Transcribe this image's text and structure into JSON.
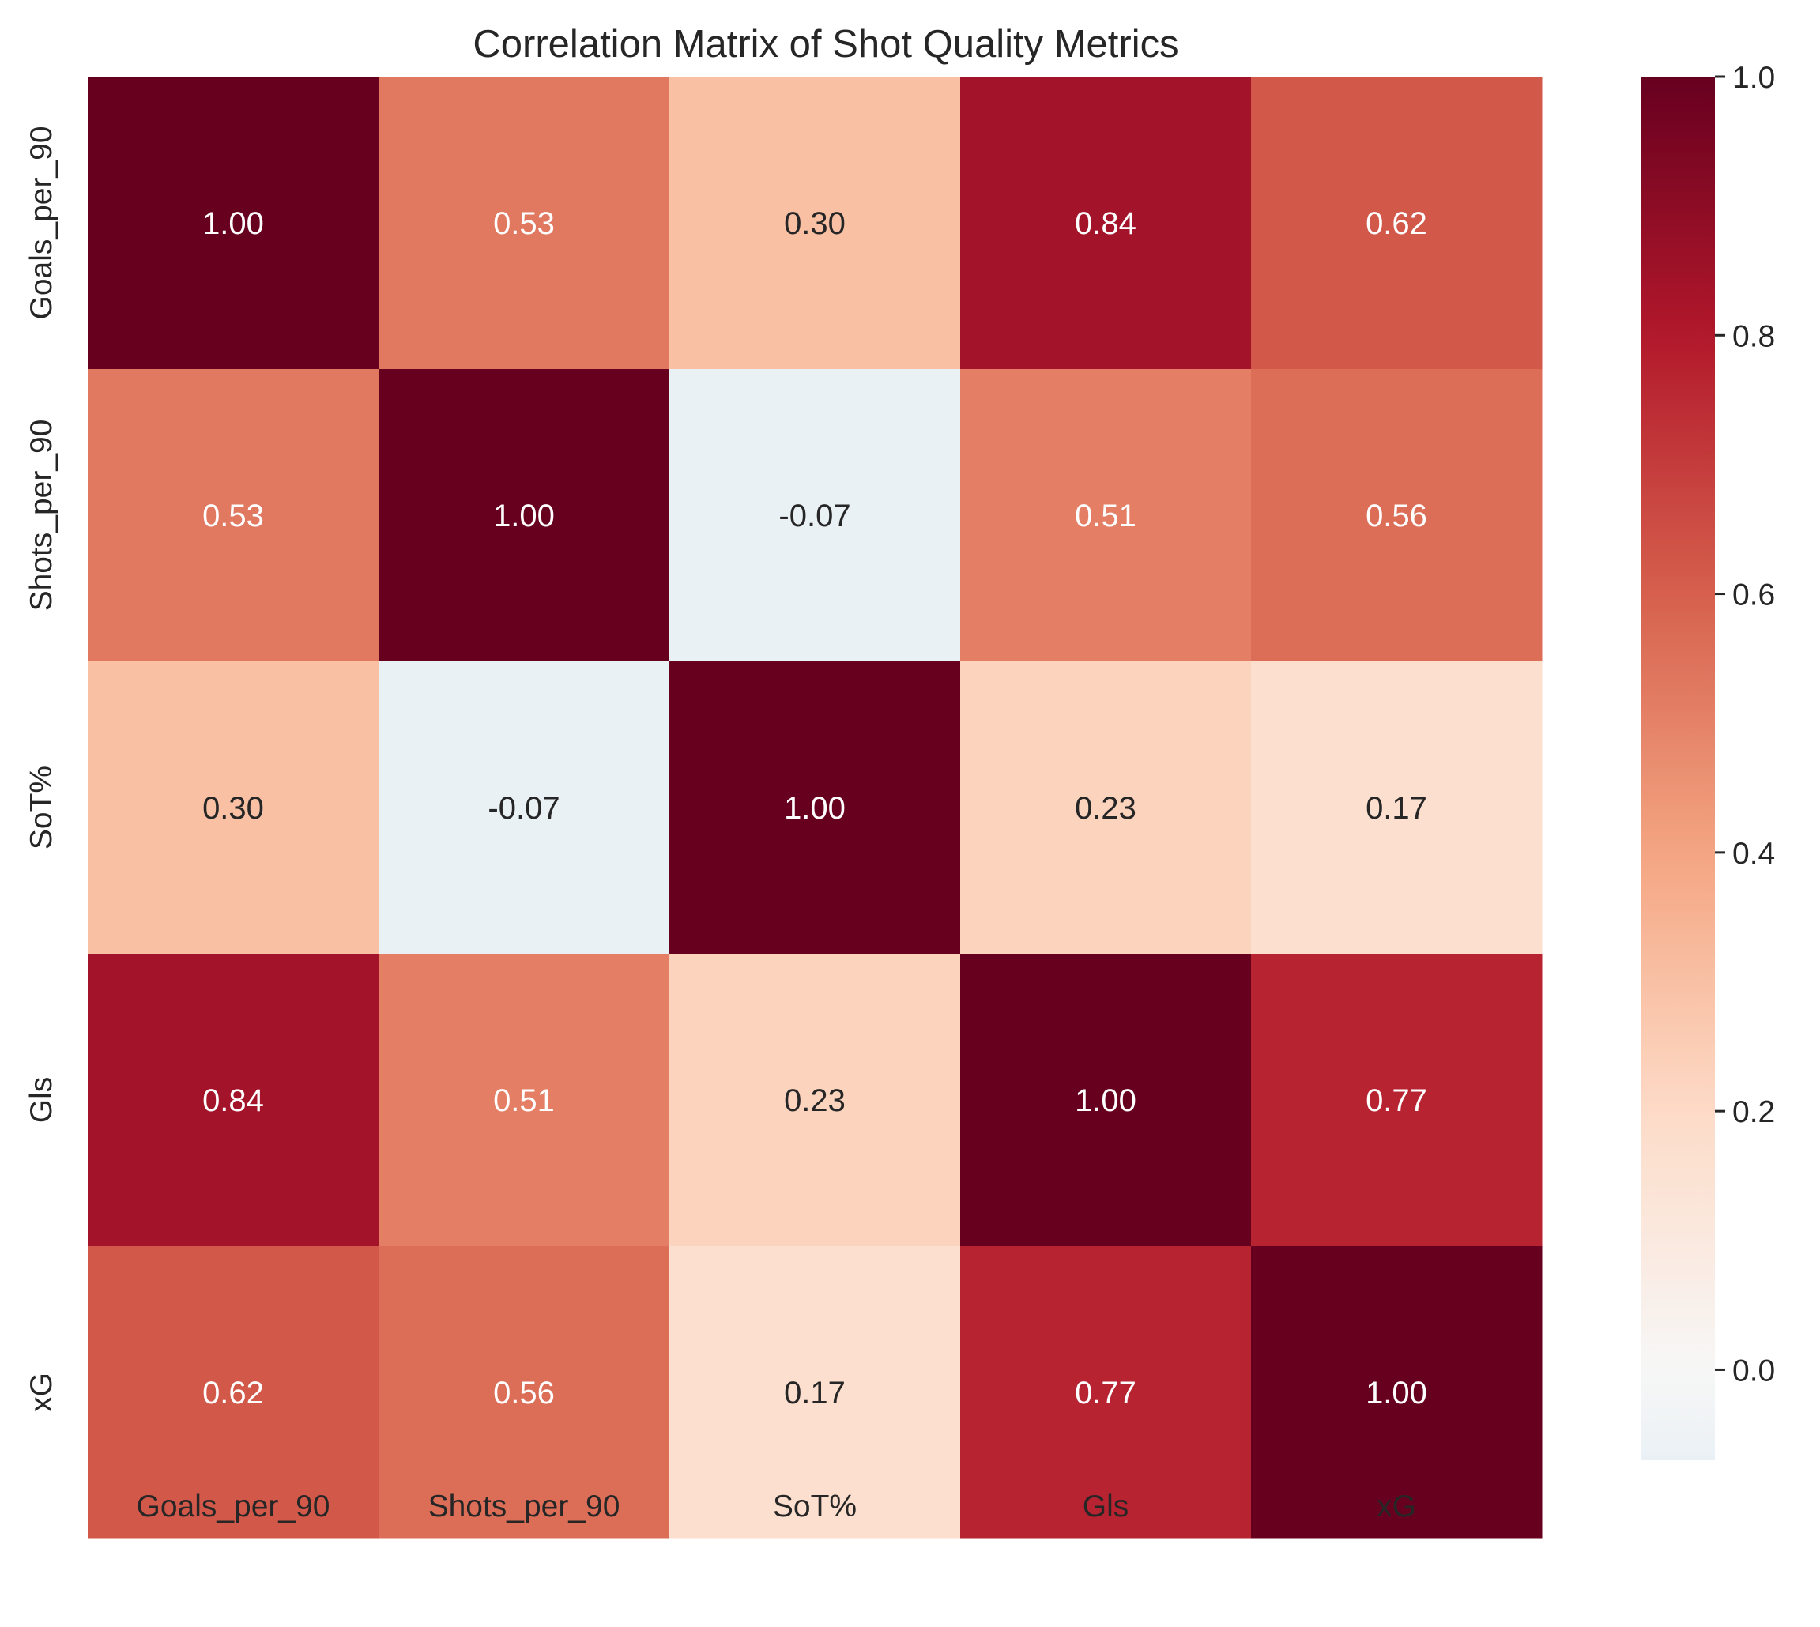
{
  "chart_data": {
    "type": "heatmap",
    "title": "Correlation Matrix of Shot Quality Metrics",
    "xlabel": "",
    "ylabel": "",
    "x_categories": [
      "Goals_per_90",
      "Shots_per_90",
      "SoT%",
      "Gls",
      "xG"
    ],
    "y_categories": [
      "Goals_per_90",
      "Shots_per_90",
      "SoT%",
      "Gls",
      "xG"
    ],
    "values": [
      [
        1.0,
        0.53,
        0.3,
        0.84,
        0.62
      ],
      [
        0.53,
        1.0,
        -0.07,
        0.51,
        0.56
      ],
      [
        0.3,
        -0.07,
        1.0,
        0.23,
        0.17
      ],
      [
        0.84,
        0.51,
        0.23,
        1.0,
        0.77
      ],
      [
        0.62,
        0.56,
        0.17,
        0.77,
        1.0
      ]
    ],
    "annotation_format": "0.00",
    "colormap": "RdBu_r",
    "color_center": 0,
    "colorbar": {
      "range": [
        -0.07,
        1.0
      ],
      "ticks": [
        0.0,
        0.2,
        0.4,
        0.6,
        0.8,
        1.0
      ],
      "tick_labels": [
        "0.0",
        "0.2",
        "0.4",
        "0.6",
        "0.8",
        "1.0"
      ],
      "placement": "right"
    },
    "grid": false,
    "colors": {
      "text_dark": "#262626",
      "text_light": "#ffffff"
    }
  }
}
